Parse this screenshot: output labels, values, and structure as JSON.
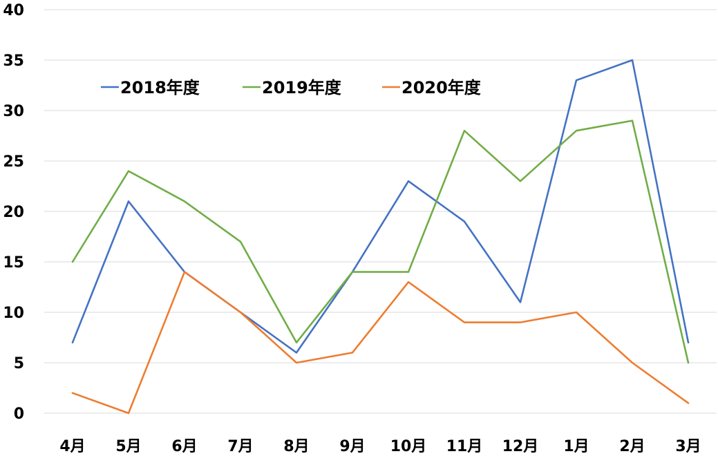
{
  "chart_data": {
    "type": "line",
    "title": "",
    "xlabel": "",
    "ylabel": "",
    "categories": [
      "4月",
      "5月",
      "6月",
      "7月",
      "8月",
      "9月",
      "10月",
      "11月",
      "12月",
      "1月",
      "2月",
      "3月"
    ],
    "ylim": [
      0,
      40
    ],
    "yticks": [
      0,
      5,
      10,
      15,
      20,
      25,
      30,
      35,
      40
    ],
    "grid": "horizontal",
    "legend_position": "top-left",
    "series": [
      {
        "name": "2018年度",
        "color": "#4472C4",
        "values": [
          7,
          21,
          14,
          10,
          6,
          14,
          23,
          19,
          11,
          33,
          35,
          7
        ]
      },
      {
        "name": "2019年度",
        "color": "#70AD47",
        "values": [
          15,
          24,
          21,
          17,
          7,
          14,
          14,
          28,
          23,
          28,
          29,
          5
        ]
      },
      {
        "name": "2020年度",
        "color": "#ED7D31",
        "values": [
          2,
          0,
          14,
          10,
          5,
          6,
          13,
          9,
          9,
          10,
          5,
          1
        ]
      }
    ]
  }
}
